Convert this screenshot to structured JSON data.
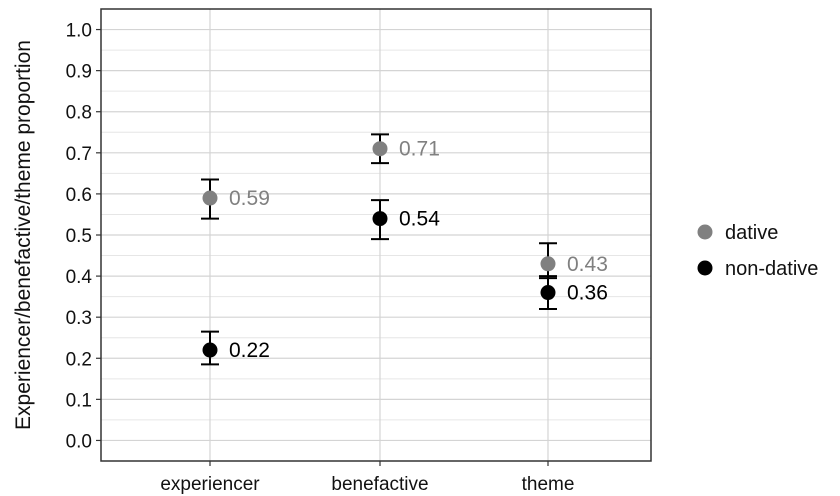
{
  "chart_data": {
    "type": "scatter",
    "title": "",
    "xlabel": "",
    "ylabel": "Experiencer/benefactive/theme proportion",
    "categories": [
      "experiencer",
      "benefactive",
      "theme"
    ],
    "ylim": [
      -0.05,
      1.05
    ],
    "yticks": [
      "0.0",
      "0.1",
      "0.2",
      "0.3",
      "0.4",
      "0.5",
      "0.6",
      "0.7",
      "0.8",
      "0.9",
      "1.0"
    ],
    "grid": true,
    "legend_position": "right",
    "series": [
      {
        "name": "dative",
        "color": "#808080",
        "values": [
          0.59,
          0.71,
          0.43
        ],
        "err_low": [
          0.54,
          0.675,
          0.395
        ],
        "err_high": [
          0.635,
          0.745,
          0.48
        ],
        "labels": [
          "0.59",
          "0.71",
          "0.43"
        ]
      },
      {
        "name": "non-dative",
        "color": "#000000",
        "values": [
          0.22,
          0.54,
          0.36
        ],
        "err_low": [
          0.185,
          0.49,
          0.32
        ],
        "err_high": [
          0.265,
          0.585,
          0.4
        ],
        "labels": [
          "0.22",
          "0.54",
          "0.36"
        ]
      }
    ]
  }
}
